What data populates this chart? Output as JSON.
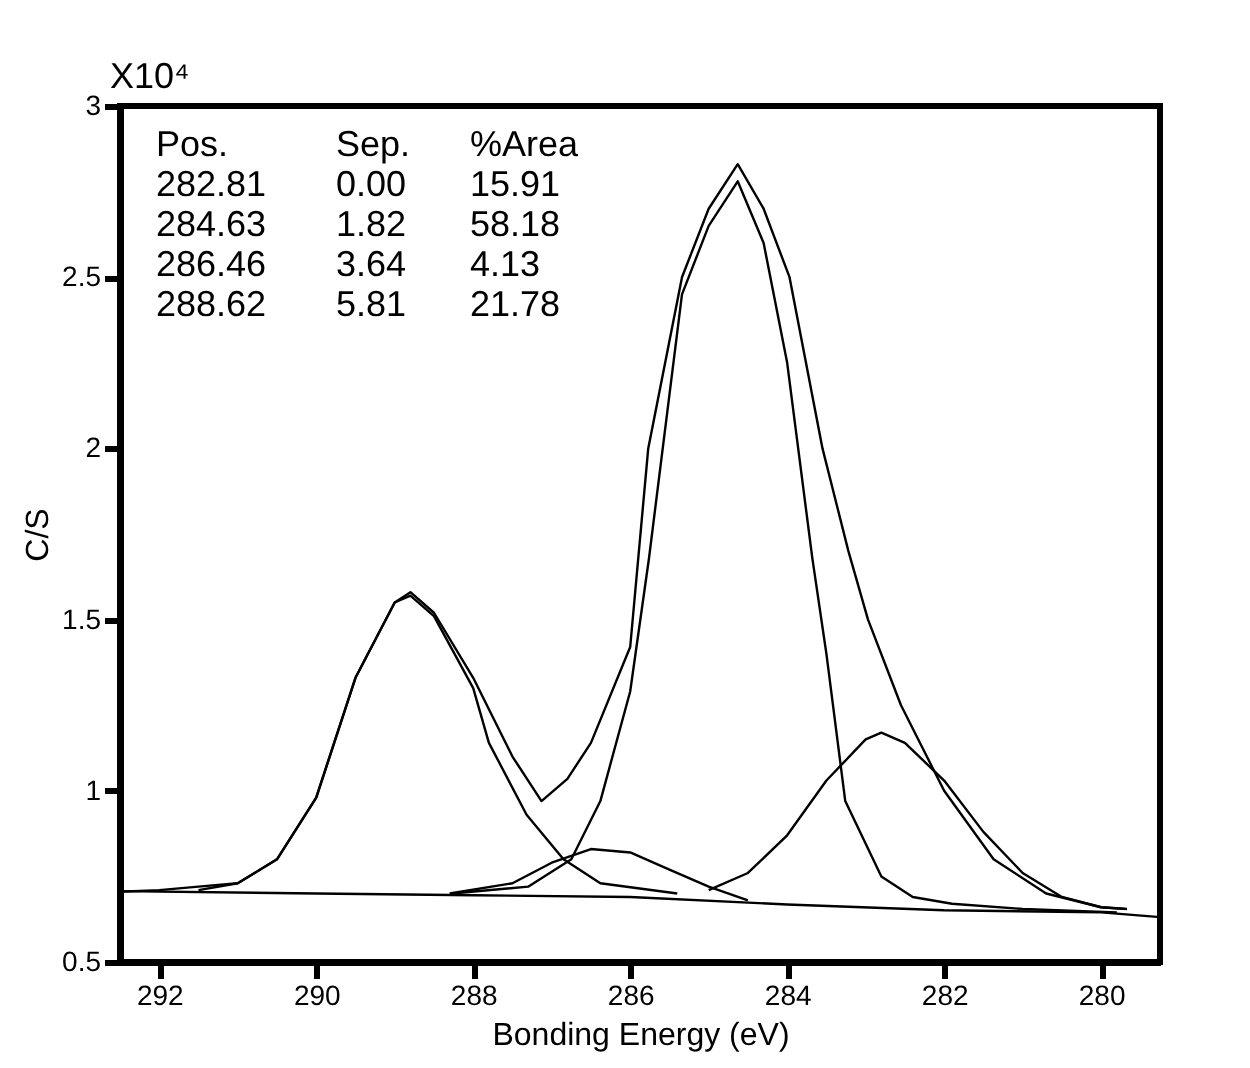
{
  "chart_data": {
    "type": "line",
    "xlabel": "Bonding Energy (eV)",
    "ylabel": "C/S",
    "xlim": [
      292.5,
      279.25
    ],
    "xticks": [
      292,
      290,
      288,
      286,
      284,
      282,
      280
    ],
    "ylim": [
      0.5,
      3
    ],
    "yticks": [
      0.5,
      1,
      1.5,
      2,
      2.5,
      3
    ],
    "grid": false,
    "legend": false,
    "marker": "none",
    "line_style": "solid",
    "annotations": [
      "X10⁴",
      "Pos.",
      "Sep.",
      "%Area",
      "282.81",
      "0.00",
      "15.91",
      "284.63",
      "1.82",
      "58.18",
      "286.46",
      "3.64",
      "4.13",
      "288.62",
      "5.81",
      "21.78"
    ],
    "series": [
      {
        "color": "#000000",
        "x": [
          292.5,
          292,
          291.5,
          291,
          290.5,
          290,
          289.5,
          289,
          288.8,
          288.5,
          288,
          287.5,
          287.13,
          286.8,
          286.5,
          286,
          285.77,
          285.34,
          285,
          284.63,
          284.3,
          283.97,
          283.55,
          283.22,
          282.97,
          282.55,
          282,
          281.37,
          280.7,
          280,
          279.67
        ],
        "values": [
          0.705,
          0.71,
          0.72,
          0.73,
          0.8,
          0.98,
          1.33,
          1.55,
          1.58,
          1.52,
          1.33,
          1.1,
          0.97,
          1.035,
          1.14,
          1.42,
          2.0,
          2.5,
          2.7,
          2.83,
          2.7,
          2.5,
          2.0,
          1.7,
          1.5,
          1.25,
          1.0,
          0.8,
          0.7,
          0.66,
          0.655
        ]
      },
      {
        "color": "#000000",
        "x": [
          292.5,
          290,
          288,
          286,
          284,
          282,
          280,
          279.25
        ],
        "values": [
          0.707,
          0.7,
          0.695,
          0.69,
          0.668,
          0.651,
          0.645,
          0.631
        ]
      },
      {
        "color": "#000000",
        "x": [
          291.5,
          291,
          290.5,
          290,
          289.5,
          289,
          288.8,
          288.5,
          288,
          287.8,
          287.32,
          286.85,
          286.38,
          285.4
        ],
        "values": [
          0.71,
          0.73,
          0.8,
          0.98,
          1.33,
          1.55,
          1.57,
          1.51,
          1.3,
          1.14,
          0.93,
          0.8,
          0.73,
          0.7
        ]
      },
      {
        "color": "#000000",
        "x": [
          288.3,
          287.5,
          287,
          286.5,
          286,
          285.5,
          285,
          284.5
        ],
        "values": [
          0.7,
          0.73,
          0.79,
          0.83,
          0.82,
          0.77,
          0.72,
          0.68
        ]
      },
      {
        "color": "#000000",
        "x": [
          288.27,
          287.3,
          286.75,
          286.38,
          286,
          285.76,
          285.34,
          285,
          284.63,
          284.3,
          284,
          283.68,
          283.5,
          283.26,
          282.8,
          282.4,
          281.9,
          281,
          279.8
        ],
        "values": [
          0.7,
          0.72,
          0.8,
          0.97,
          1.29,
          1.68,
          2.45,
          2.65,
          2.78,
          2.6,
          2.25,
          1.68,
          1.4,
          0.97,
          0.75,
          0.69,
          0.67,
          0.655,
          0.645
        ]
      },
      {
        "color": "#000000",
        "x": [
          285,
          284.5,
          284,
          283.5,
          283,
          282.8,
          282.5,
          282,
          281.5,
          281,
          280.5,
          280,
          279.7
        ],
        "values": [
          0.71,
          0.76,
          0.87,
          1.03,
          1.15,
          1.17,
          1.14,
          1.03,
          0.88,
          0.76,
          0.69,
          0.66,
          0.655
        ]
      }
    ]
  }
}
